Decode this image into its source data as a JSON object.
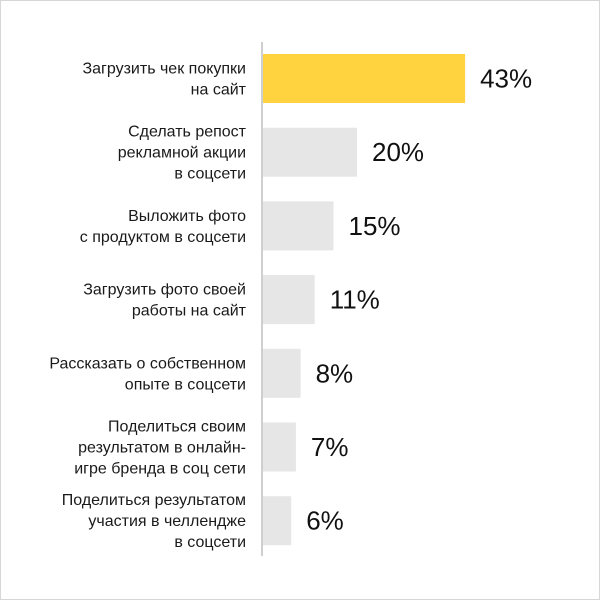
{
  "chart_data": {
    "type": "bar",
    "orientation": "horizontal",
    "categories": [
      [
        "Загрузить чек покупки",
        "на сайт"
      ],
      [
        "Сделать репост",
        "рекламной акции",
        "в соцсети"
      ],
      [
        "Выложить фото",
        "с продуктом в соцсети"
      ],
      [
        "Загрузить фото своей",
        "работы на сайт"
      ],
      [
        "Рассказать о собственном",
        "опыте в соцсети"
      ],
      [
        "Поделиться своим",
        "результатом в онлайн-",
        "игре бренда в соц сети"
      ],
      [
        "Поделиться результатом",
        "участия в челлендже",
        "в соцсети"
      ]
    ],
    "values": [
      43,
      20,
      15,
      11,
      8,
      7,
      6
    ],
    "value_labels": [
      "43%",
      "20%",
      "15%",
      "11%",
      "8%",
      "7%",
      "6%"
    ],
    "unit": "%",
    "xlim": [
      0,
      50
    ],
    "grid": false,
    "legend": "none",
    "colors": {
      "highlight": "#FFD23F",
      "bar": "#E6E6E6",
      "axis": "#CFCFCF"
    },
    "highlight_index": 0
  }
}
